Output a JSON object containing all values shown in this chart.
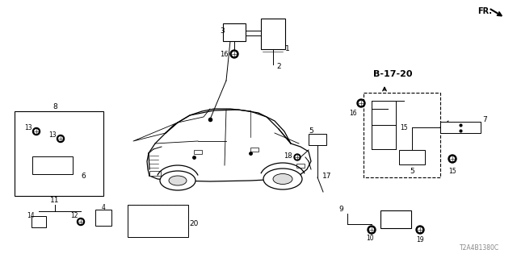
{
  "background_color": "#ffffff",
  "image_code": "T2A4B1380C",
  "fig_width": 6.4,
  "fig_height": 3.2,
  "dpi": 100,
  "fr_text": "FR.",
  "b_label": "B-17-20"
}
